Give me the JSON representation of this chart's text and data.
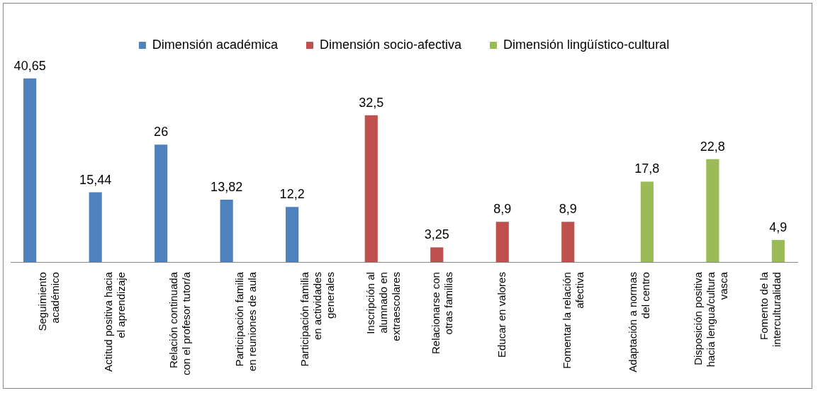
{
  "chart_data": {
    "type": "bar",
    "categories": [
      "Seguimiento académico",
      "Actitud positiva hacia el aprendizaje",
      "Relación continuada con el profesor tutor/a",
      "Participación familia en reuniones de aula",
      "Participación familia en actividades generales",
      "Inscripción al alumnado en extraescolares",
      "Relacionarse con otras familias",
      "Educar en valores",
      "Fomentar la relación afectiva",
      "Adaptación a normas del centro",
      "Disposición positiva hacia lengua/cultura vasca",
      "Fomento de la interculturalidad"
    ],
    "series": [
      {
        "name": "Dimensión académica",
        "color": "#4f81bd",
        "values": [
          40.65,
          15.44,
          26,
          13.82,
          12.2,
          null,
          null,
          null,
          null,
          null,
          null,
          null
        ],
        "value_labels": [
          "40,65",
          "15,44",
          "26",
          "13,82",
          "12,2",
          null,
          null,
          null,
          null,
          null,
          null,
          null
        ]
      },
      {
        "name": "Dimensión socio-afectiva",
        "color": "#c0504d",
        "values": [
          null,
          null,
          null,
          null,
          null,
          32.5,
          3.25,
          8.9,
          8.9,
          null,
          null,
          null
        ],
        "value_labels": [
          null,
          null,
          null,
          null,
          null,
          "32,5",
          "3,25",
          "8,9",
          "8,9",
          null,
          null,
          null
        ]
      },
      {
        "name": "Dimensión lingüístico-cultural",
        "color": "#9bbb59",
        "values": [
          null,
          null,
          null,
          null,
          null,
          null,
          null,
          null,
          null,
          17.8,
          22.8,
          4.9
        ],
        "value_labels": [
          null,
          null,
          null,
          null,
          null,
          null,
          null,
          null,
          null,
          "17,8",
          "22,8",
          "4,9"
        ]
      }
    ],
    "legend": "top",
    "grid": false,
    "tick_labels": "x"
  }
}
